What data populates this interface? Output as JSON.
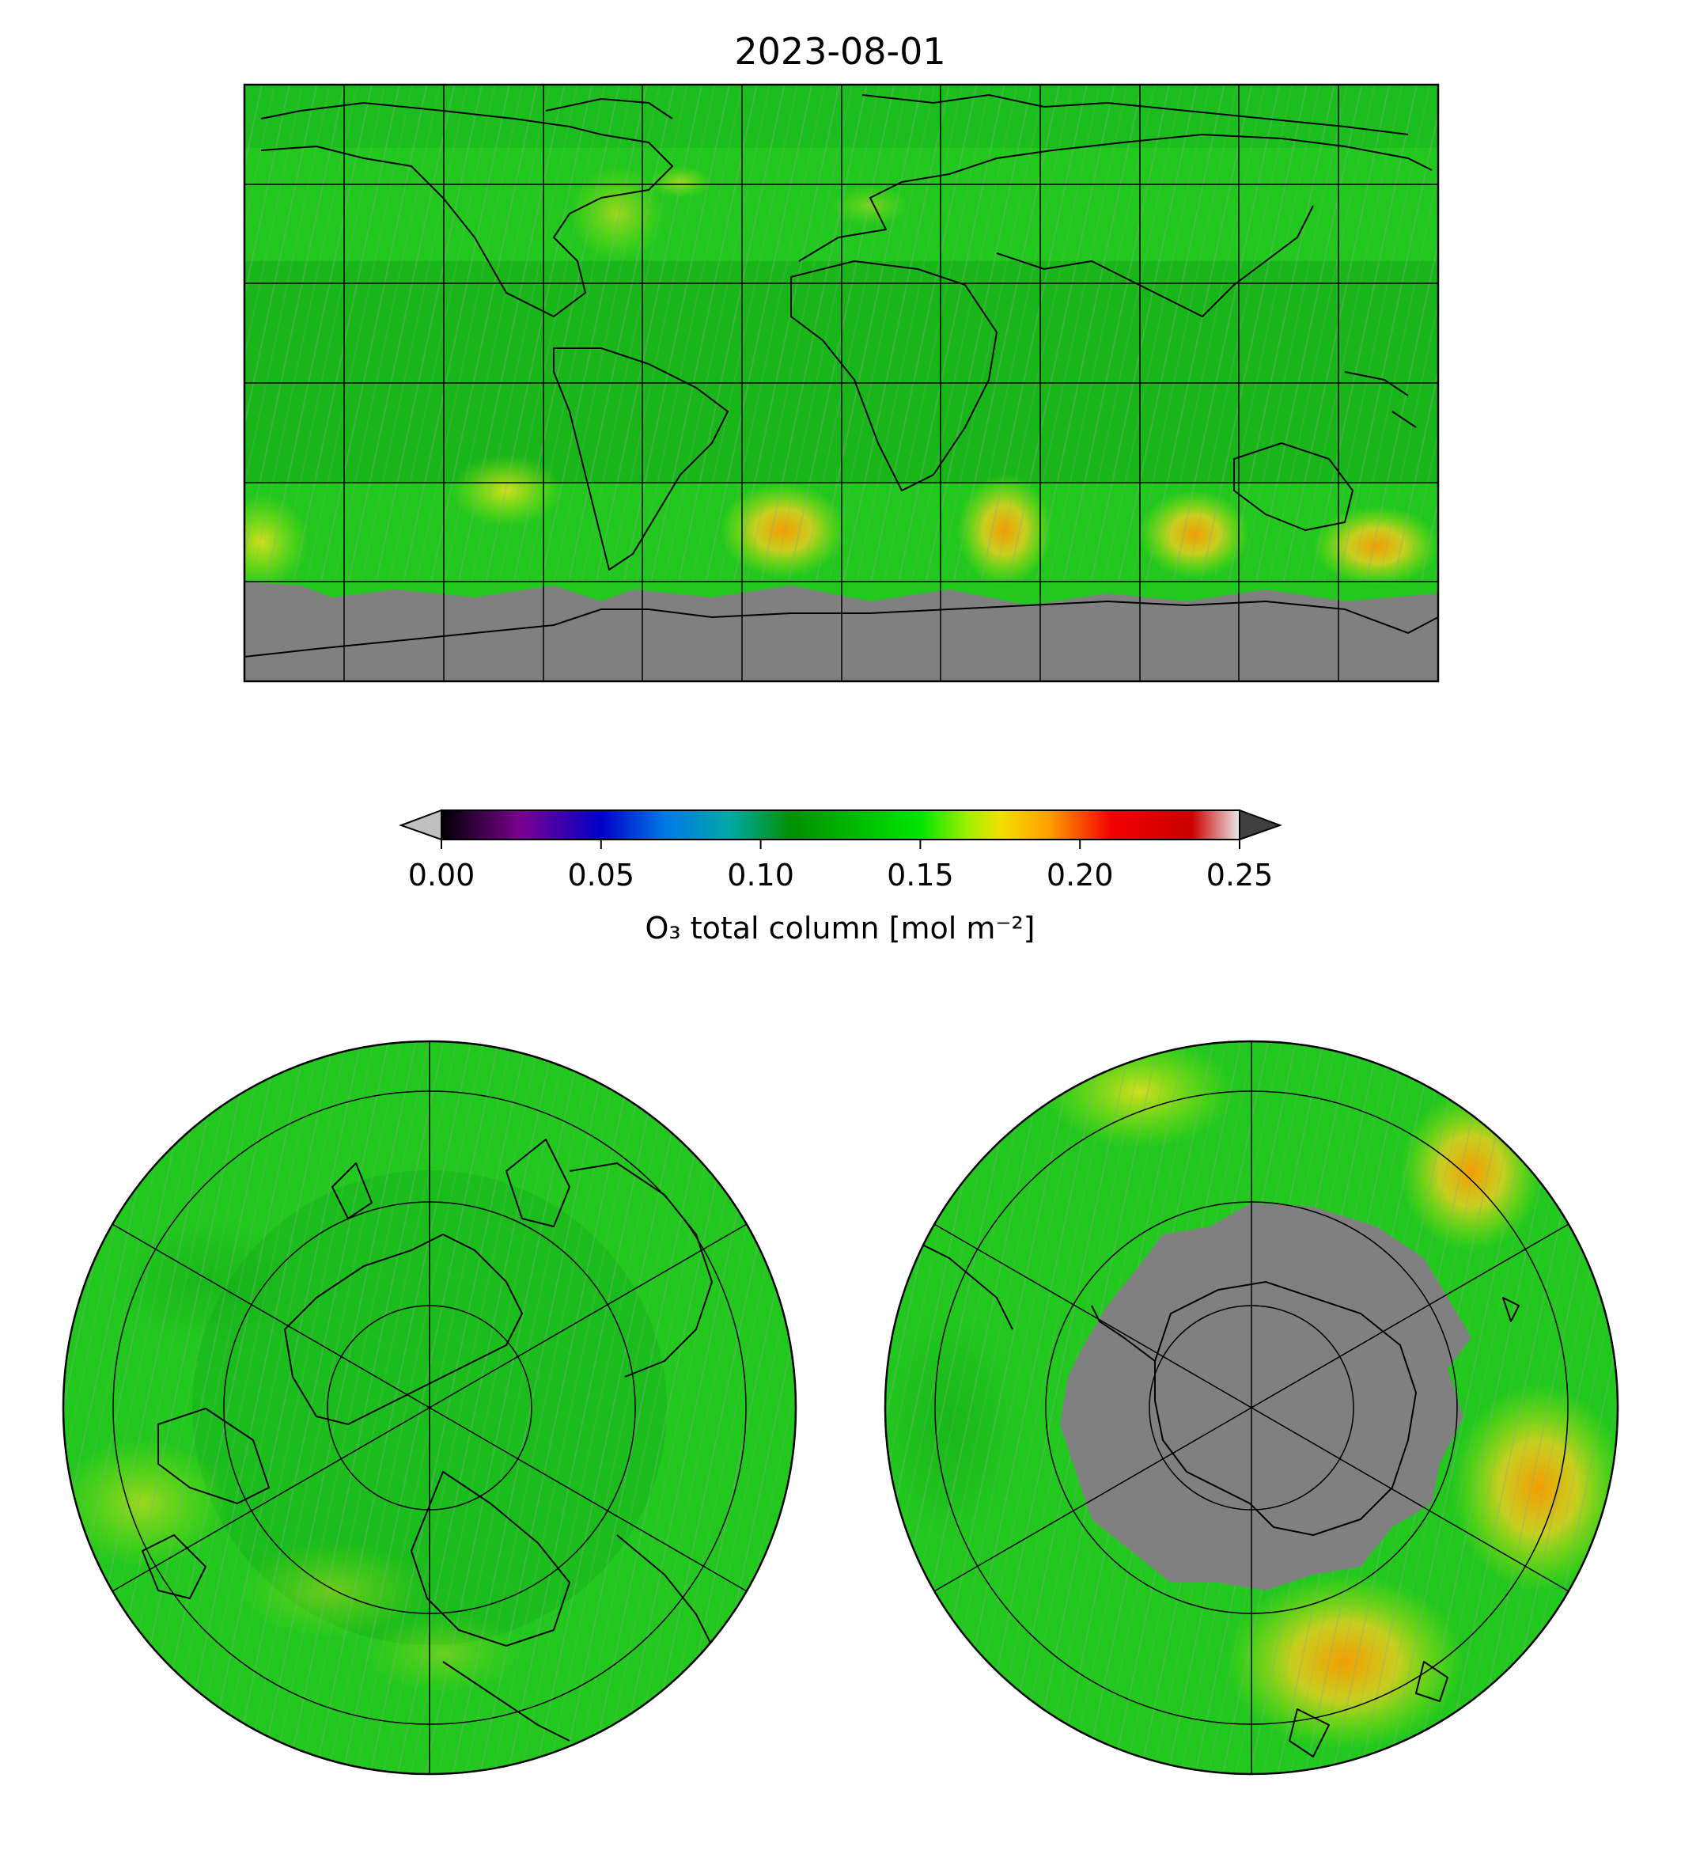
{
  "title": "2023-08-01",
  "colorbar": {
    "label": "O₃ total column [mol m⁻²]",
    "ticks": [
      "0.00",
      "0.05",
      "0.10",
      "0.15",
      "0.20",
      "0.25"
    ],
    "range": [
      0.0,
      0.25
    ],
    "extend": "both",
    "under_color": "#c0c0c0",
    "over_color": "#404040",
    "colormap_stops": [
      {
        "value": 0.0,
        "color": "#000000"
      },
      {
        "value": 0.025,
        "color": "#7a0090"
      },
      {
        "value": 0.05,
        "color": "#0000c8"
      },
      {
        "value": 0.07,
        "color": "#0078e6"
      },
      {
        "value": 0.09,
        "color": "#00a8a8"
      },
      {
        "value": 0.11,
        "color": "#009000"
      },
      {
        "value": 0.15,
        "color": "#00e600"
      },
      {
        "value": 0.165,
        "color": "#a0f000"
      },
      {
        "value": 0.175,
        "color": "#f0e000"
      },
      {
        "value": 0.19,
        "color": "#ffa000"
      },
      {
        "value": 0.21,
        "color": "#f00000"
      },
      {
        "value": 0.235,
        "color": "#cc0000"
      },
      {
        "value": 0.25,
        "color": "#e8e8e8"
      }
    ]
  },
  "colors": {
    "background_field": "#22c81e",
    "missing_data": "#808080",
    "high_ozone": "#f0d020"
  },
  "panels": [
    "global-map",
    "north-polar-map",
    "south-polar-map"
  ]
}
